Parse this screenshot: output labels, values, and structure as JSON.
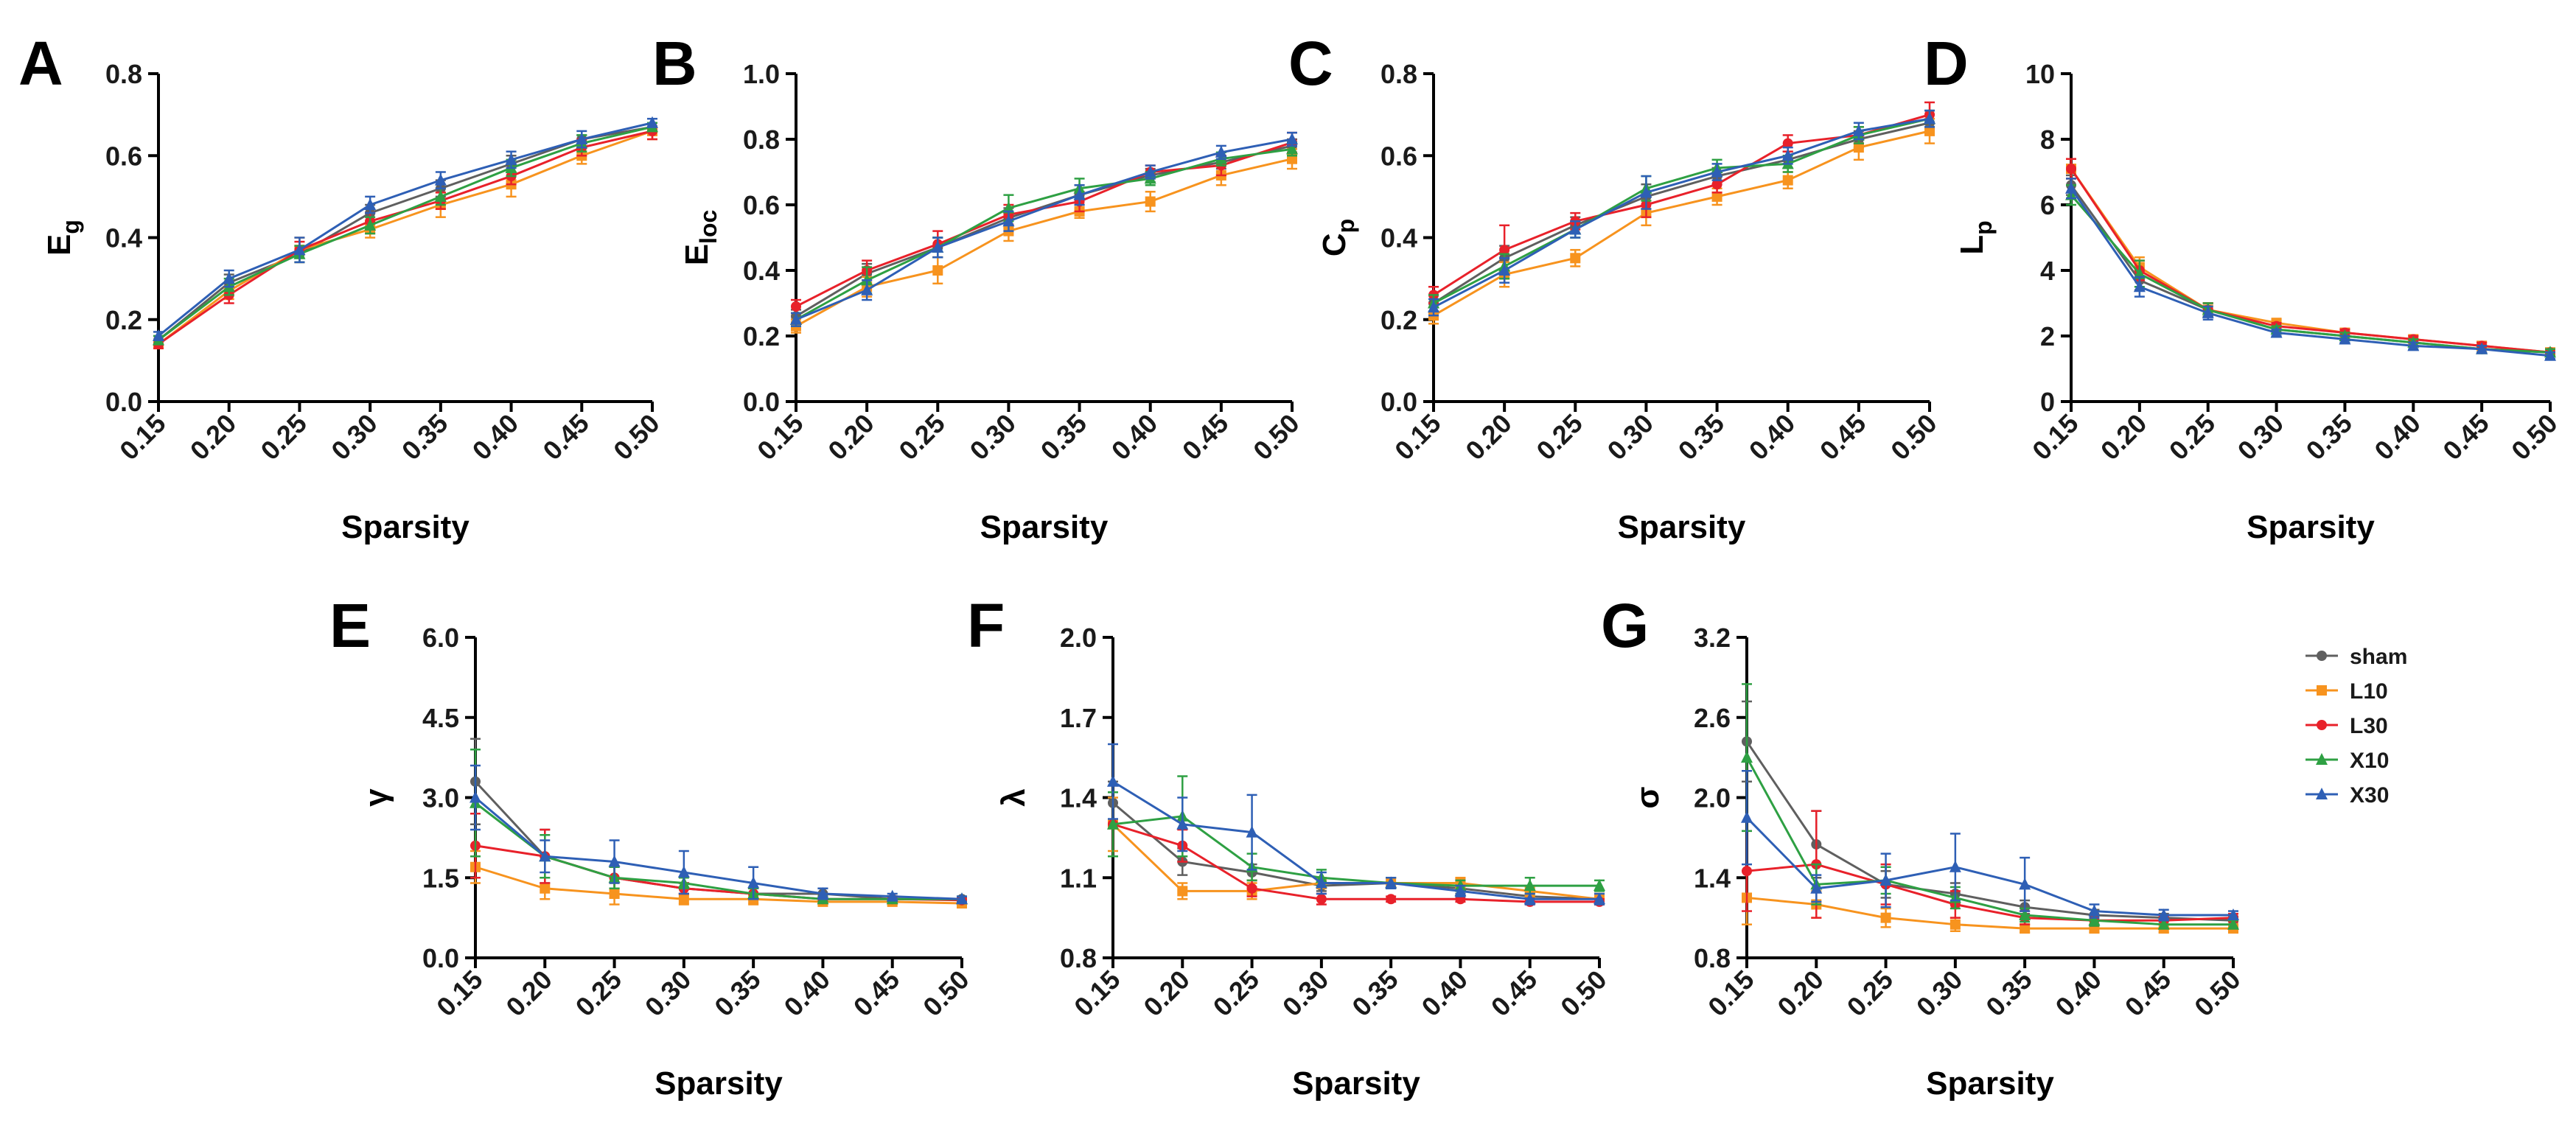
{
  "legend": [
    {
      "name": "sham",
      "color": "#5f5f5f",
      "marker": "circle"
    },
    {
      "name": "L10",
      "color": "#f7931e",
      "marker": "square"
    },
    {
      "name": "L30",
      "color": "#e8212a",
      "marker": "circle"
    },
    {
      "name": "X10",
      "color": "#2ea043",
      "marker": "triangle"
    },
    {
      "name": "X30",
      "color": "#2e5fb5",
      "marker": "triangle"
    }
  ],
  "chart_data": [
    {
      "panel": "A",
      "type": "line",
      "ylabel": "E",
      "ylabel_sub": "g",
      "xlabel": "Sparsity",
      "x": [
        0.15,
        0.2,
        0.25,
        0.3,
        0.35,
        0.4,
        0.45,
        0.5
      ],
      "x_ticks": [
        "0.15",
        "0.20",
        "0.25",
        "0.30",
        "0.35",
        "0.40",
        "0.45",
        "0.50"
      ],
      "ylim": [
        0,
        0.8
      ],
      "y_ticks": [
        "0.0",
        "0.2",
        "0.4",
        "0.6",
        "0.8"
      ],
      "series": [
        {
          "name": "sham",
          "values": [
            0.15,
            0.29,
            0.36,
            0.46,
            0.52,
            0.58,
            0.64,
            0.67
          ],
          "errors": [
            0.01,
            0.02,
            0.02,
            0.02,
            0.02,
            0.02,
            0.01,
            0.01
          ]
        },
        {
          "name": "L10",
          "values": [
            0.14,
            0.27,
            0.37,
            0.42,
            0.48,
            0.53,
            0.6,
            0.66
          ],
          "errors": [
            0.01,
            0.02,
            0.03,
            0.02,
            0.03,
            0.03,
            0.02,
            0.02
          ]
        },
        {
          "name": "L30",
          "values": [
            0.14,
            0.26,
            0.37,
            0.44,
            0.49,
            0.55,
            0.62,
            0.66
          ],
          "errors": [
            0.01,
            0.02,
            0.02,
            0.02,
            0.02,
            0.02,
            0.02,
            0.02
          ]
        },
        {
          "name": "X10",
          "values": [
            0.15,
            0.28,
            0.36,
            0.43,
            0.5,
            0.57,
            0.63,
            0.67
          ],
          "errors": [
            0.01,
            0.02,
            0.02,
            0.02,
            0.02,
            0.02,
            0.02,
            0.01
          ]
        },
        {
          "name": "X30",
          "values": [
            0.16,
            0.3,
            0.37,
            0.48,
            0.54,
            0.59,
            0.64,
            0.68
          ],
          "errors": [
            0.01,
            0.02,
            0.03,
            0.02,
            0.02,
            0.02,
            0.02,
            0.01
          ]
        }
      ]
    },
    {
      "panel": "B",
      "type": "line",
      "ylabel": "E",
      "ylabel_sub": "loc",
      "xlabel": "Sparsity",
      "x": [
        0.15,
        0.2,
        0.25,
        0.3,
        0.35,
        0.4,
        0.45,
        0.5
      ],
      "x_ticks": [
        "0.15",
        "0.20",
        "0.25",
        "0.30",
        "0.35",
        "0.40",
        "0.45",
        "0.50"
      ],
      "ylim": [
        0,
        1.0
      ],
      "y_ticks": [
        "0.0",
        "0.2",
        "0.4",
        "0.6",
        "0.8",
        "1.0"
      ],
      "series": [
        {
          "name": "sham",
          "values": [
            0.26,
            0.39,
            0.47,
            0.56,
            0.63,
            0.69,
            0.73,
            0.78
          ],
          "errors": [
            0.02,
            0.03,
            0.03,
            0.03,
            0.03,
            0.02,
            0.02,
            0.02
          ]
        },
        {
          "name": "L10",
          "values": [
            0.23,
            0.35,
            0.4,
            0.52,
            0.58,
            0.61,
            0.69,
            0.74
          ],
          "errors": [
            0.02,
            0.03,
            0.04,
            0.03,
            0.02,
            0.03,
            0.03,
            0.03
          ]
        },
        {
          "name": "L30",
          "values": [
            0.29,
            0.4,
            0.48,
            0.57,
            0.61,
            0.7,
            0.72,
            0.79
          ],
          "errors": [
            0.02,
            0.03,
            0.04,
            0.03,
            0.03,
            0.02,
            0.03,
            0.03
          ]
        },
        {
          "name": "X10",
          "values": [
            0.25,
            0.37,
            0.47,
            0.59,
            0.65,
            0.68,
            0.74,
            0.77
          ],
          "errors": [
            0.02,
            0.04,
            0.03,
            0.04,
            0.03,
            0.02,
            0.02,
            0.02
          ]
        },
        {
          "name": "X30",
          "values": [
            0.25,
            0.34,
            0.47,
            0.55,
            0.63,
            0.7,
            0.76,
            0.8
          ],
          "errors": [
            0.02,
            0.03,
            0.03,
            0.03,
            0.03,
            0.02,
            0.02,
            0.02
          ]
        }
      ]
    },
    {
      "panel": "C",
      "type": "line",
      "ylabel": "C",
      "ylabel_sub": "p",
      "xlabel": "Sparsity",
      "x": [
        0.15,
        0.2,
        0.25,
        0.3,
        0.35,
        0.4,
        0.45,
        0.5
      ],
      "x_ticks": [
        "0.15",
        "0.20",
        "0.25",
        "0.30",
        "0.35",
        "0.40",
        "0.45",
        "0.50"
      ],
      "ylim": [
        0,
        0.8
      ],
      "y_ticks": [
        "0.0",
        "0.2",
        "0.4",
        "0.6",
        "0.8"
      ],
      "series": [
        {
          "name": "sham",
          "values": [
            0.24,
            0.35,
            0.43,
            0.5,
            0.55,
            0.59,
            0.64,
            0.68
          ],
          "errors": [
            0.02,
            0.03,
            0.02,
            0.03,
            0.02,
            0.02,
            0.02,
            0.02
          ]
        },
        {
          "name": "L10",
          "values": [
            0.21,
            0.31,
            0.35,
            0.46,
            0.5,
            0.54,
            0.62,
            0.66
          ],
          "errors": [
            0.02,
            0.03,
            0.02,
            0.03,
            0.02,
            0.02,
            0.03,
            0.03
          ]
        },
        {
          "name": "L30",
          "values": [
            0.26,
            0.37,
            0.44,
            0.48,
            0.53,
            0.63,
            0.65,
            0.7
          ],
          "errors": [
            0.02,
            0.06,
            0.02,
            0.03,
            0.02,
            0.02,
            0.02,
            0.03
          ]
        },
        {
          "name": "X10",
          "values": [
            0.24,
            0.33,
            0.42,
            0.52,
            0.57,
            0.58,
            0.65,
            0.69
          ],
          "errors": [
            0.02,
            0.03,
            0.02,
            0.03,
            0.02,
            0.02,
            0.02,
            0.02
          ]
        },
        {
          "name": "X30",
          "values": [
            0.23,
            0.32,
            0.42,
            0.51,
            0.56,
            0.6,
            0.66,
            0.69
          ],
          "errors": [
            0.02,
            0.03,
            0.02,
            0.04,
            0.02,
            0.02,
            0.02,
            0.02
          ]
        }
      ]
    },
    {
      "panel": "D",
      "type": "line",
      "ylabel": "L",
      "ylabel_sub": "p",
      "xlabel": "Sparsity",
      "x": [
        0.15,
        0.2,
        0.25,
        0.3,
        0.35,
        0.4,
        0.45,
        0.5
      ],
      "x_ticks": [
        "0.15",
        "0.20",
        "0.25",
        "0.30",
        "0.35",
        "0.40",
        "0.45",
        "0.50"
      ],
      "ylim": [
        0,
        10
      ],
      "y_ticks": [
        "0",
        "2",
        "4",
        "6",
        "8",
        "10"
      ],
      "series": [
        {
          "name": "sham",
          "values": [
            6.6,
            3.7,
            2.8,
            2.2,
            2.0,
            1.8,
            1.6,
            1.5
          ],
          "errors": [
            0.3,
            0.3,
            0.2,
            0.1,
            0.1,
            0.1,
            0.1,
            0.1
          ]
        },
        {
          "name": "L10",
          "values": [
            7.1,
            4.1,
            2.8,
            2.4,
            2.1,
            1.9,
            1.7,
            1.5
          ],
          "errors": [
            0.3,
            0.3,
            0.2,
            0.1,
            0.1,
            0.1,
            0.1,
            0.1
          ]
        },
        {
          "name": "L30",
          "values": [
            7.1,
            4.0,
            2.8,
            2.3,
            2.1,
            1.9,
            1.7,
            1.5
          ],
          "errors": [
            0.3,
            0.3,
            0.2,
            0.1,
            0.1,
            0.1,
            0.1,
            0.1
          ]
        },
        {
          "name": "X10",
          "values": [
            6.3,
            3.9,
            2.8,
            2.2,
            2.0,
            1.8,
            1.6,
            1.5
          ],
          "errors": [
            0.3,
            0.4,
            0.2,
            0.1,
            0.1,
            0.1,
            0.1,
            0.1
          ]
        },
        {
          "name": "X30",
          "values": [
            6.5,
            3.5,
            2.7,
            2.1,
            1.9,
            1.7,
            1.6,
            1.4
          ],
          "errors": [
            0.3,
            0.3,
            0.2,
            0.1,
            0.1,
            0.1,
            0.1,
            0.1
          ]
        }
      ]
    },
    {
      "panel": "E",
      "type": "line",
      "ylabel": "γ",
      "ylabel_sub": "",
      "xlabel": "Sparsity",
      "x": [
        0.15,
        0.2,
        0.25,
        0.3,
        0.35,
        0.4,
        0.45,
        0.5
      ],
      "x_ticks": [
        "0.15",
        "0.20",
        "0.25",
        "0.30",
        "0.35",
        "0.40",
        "0.45",
        "0.50"
      ],
      "ylim": [
        0,
        6.0
      ],
      "y_ticks": [
        "0.0",
        "1.5",
        "3.0",
        "4.5",
        "6.0"
      ],
      "series": [
        {
          "name": "sham",
          "values": [
            3.3,
            1.9,
            1.5,
            1.3,
            1.2,
            1.2,
            1.1,
            1.1
          ],
          "errors": [
            0.8,
            0.5,
            0.2,
            0.1,
            0.1,
            0.1,
            0.05,
            0.05
          ]
        },
        {
          "name": "L10",
          "values": [
            1.7,
            1.3,
            1.2,
            1.1,
            1.1,
            1.05,
            1.05,
            1.02
          ],
          "errors": [
            0.3,
            0.2,
            0.2,
            0.1,
            0.1,
            0.05,
            0.05,
            0.05
          ]
        },
        {
          "name": "L30",
          "values": [
            2.1,
            1.9,
            1.5,
            1.3,
            1.2,
            1.1,
            1.1,
            1.08
          ],
          "errors": [
            0.6,
            0.5,
            0.2,
            0.1,
            0.1,
            0.05,
            0.05,
            0.05
          ]
        },
        {
          "name": "X10",
          "values": [
            2.9,
            1.9,
            1.5,
            1.4,
            1.2,
            1.1,
            1.1,
            1.1
          ],
          "errors": [
            1.0,
            0.4,
            0.2,
            0.1,
            0.1,
            0.05,
            0.05,
            0.05
          ]
        },
        {
          "name": "X30",
          "values": [
            3.0,
            1.9,
            1.8,
            1.6,
            1.4,
            1.2,
            1.15,
            1.1
          ],
          "errors": [
            0.6,
            0.3,
            0.4,
            0.4,
            0.3,
            0.1,
            0.05,
            0.05
          ]
        }
      ]
    },
    {
      "panel": "F",
      "type": "line",
      "ylabel": "λ",
      "ylabel_sub": "",
      "xlabel": "Sparsity",
      "x": [
        0.15,
        0.2,
        0.25,
        0.3,
        0.35,
        0.4,
        0.45,
        0.5
      ],
      "x_ticks": [
        "0.15",
        "0.20",
        "0.25",
        "0.30",
        "0.35",
        "0.40",
        "0.45",
        "0.50"
      ],
      "ylim": [
        0.8,
        2.0
      ],
      "y_ticks": [
        "0.8",
        "1.1",
        "1.4",
        "1.7",
        "2.0"
      ],
      "series": [
        {
          "name": "sham",
          "values": [
            1.38,
            1.16,
            1.12,
            1.07,
            1.08,
            1.06,
            1.03,
            1.02
          ],
          "errors": [
            0.08,
            0.05,
            0.03,
            0.02,
            0.02,
            0.02,
            0.02,
            0.02
          ]
        },
        {
          "name": "L10",
          "values": [
            1.3,
            1.05,
            1.05,
            1.08,
            1.08,
            1.08,
            1.05,
            1.02
          ],
          "errors": [
            0.1,
            0.03,
            0.03,
            0.02,
            0.02,
            0.02,
            0.02,
            0.02
          ]
        },
        {
          "name": "L30",
          "values": [
            1.3,
            1.22,
            1.06,
            1.02,
            1.02,
            1.02,
            1.01,
            1.01
          ],
          "errors": [
            0.12,
            0.06,
            0.03,
            0.02,
            0.01,
            0.01,
            0.01,
            0.01
          ]
        },
        {
          "name": "X10",
          "values": [
            1.3,
            1.33,
            1.14,
            1.1,
            1.08,
            1.07,
            1.07,
            1.07
          ],
          "errors": [
            0.12,
            0.15,
            0.05,
            0.03,
            0.02,
            0.02,
            0.03,
            0.02
          ]
        },
        {
          "name": "X30",
          "values": [
            1.46,
            1.3,
            1.27,
            1.08,
            1.08,
            1.05,
            1.02,
            1.02
          ],
          "errors": [
            0.14,
            0.1,
            0.14,
            0.04,
            0.02,
            0.02,
            0.02,
            0.02
          ]
        }
      ]
    },
    {
      "panel": "G",
      "type": "line",
      "ylabel": "σ",
      "ylabel_sub": "",
      "xlabel": "Sparsity",
      "x": [
        0.15,
        0.2,
        0.25,
        0.3,
        0.35,
        0.4,
        0.45,
        0.5
      ],
      "x_ticks": [
        "0.15",
        "0.20",
        "0.25",
        "0.30",
        "0.35",
        "0.40",
        "0.45",
        "0.50"
      ],
      "ylim": [
        0.8,
        3.2
      ],
      "y_ticks": [
        "0.8",
        "1.4",
        "2.0",
        "2.6",
        "3.2"
      ],
      "series": [
        {
          "name": "sham",
          "values": [
            2.42,
            1.65,
            1.35,
            1.28,
            1.18,
            1.12,
            1.1,
            1.08
          ],
          "errors": [
            0.3,
            0.25,
            0.1,
            0.08,
            0.05,
            0.04,
            0.03,
            0.03
          ]
        },
        {
          "name": "L10",
          "values": [
            1.25,
            1.2,
            1.1,
            1.05,
            1.02,
            1.02,
            1.02,
            1.02
          ],
          "errors": [
            0.2,
            0.1,
            0.07,
            0.05,
            0.03,
            0.03,
            0.03,
            0.03
          ]
        },
        {
          "name": "L30",
          "values": [
            1.45,
            1.5,
            1.35,
            1.2,
            1.1,
            1.08,
            1.08,
            1.1
          ],
          "errors": [
            0.3,
            0.4,
            0.15,
            0.1,
            0.05,
            0.04,
            0.03,
            0.03
          ]
        },
        {
          "name": "X10",
          "values": [
            2.3,
            1.35,
            1.38,
            1.25,
            1.12,
            1.08,
            1.05,
            1.05
          ],
          "errors": [
            0.55,
            0.15,
            0.1,
            0.08,
            0.05,
            0.04,
            0.03,
            0.03
          ]
        },
        {
          "name": "X30",
          "values": [
            1.85,
            1.32,
            1.38,
            1.48,
            1.35,
            1.15,
            1.12,
            1.12
          ],
          "errors": [
            0.35,
            0.1,
            0.2,
            0.25,
            0.2,
            0.05,
            0.04,
            0.03
          ]
        }
      ]
    }
  ]
}
